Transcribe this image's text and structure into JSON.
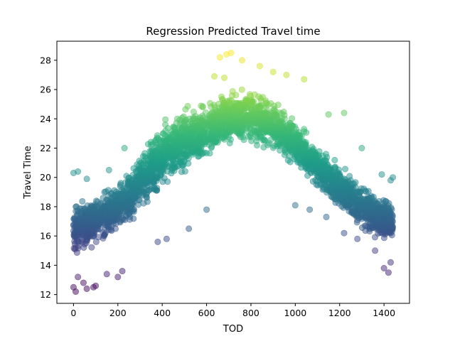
{
  "chart_data": {
    "type": "scatter",
    "title": "Regression Predicted Travel time",
    "xlabel": "TOD",
    "ylabel": "Travel Time",
    "xlim": [
      -75,
      1515
    ],
    "ylim": [
      11.4,
      29.3
    ],
    "xticks": [
      0,
      200,
      400,
      600,
      800,
      1000,
      1200,
      1400
    ],
    "yticks": [
      12,
      14,
      16,
      18,
      20,
      22,
      24,
      26,
      28
    ],
    "grid": false,
    "legend": "none",
    "colormap": "viridis",
    "color_range": [
      12,
      28.5
    ],
    "marker_alpha": 0.5,
    "series": [
      {
        "x": [
          0,
          10,
          20,
          40,
          60,
          80,
          100,
          120,
          140,
          160,
          180,
          200,
          220,
          240,
          260,
          280,
          300,
          320,
          340,
          360,
          380,
          400,
          420,
          440,
          460,
          480,
          500,
          520,
          540,
          560,
          580,
          600,
          620,
          640,
          660,
          680,
          700,
          720,
          740,
          760,
          780,
          800,
          820,
          840,
          860,
          880,
          900,
          920,
          940,
          960,
          980,
          1000,
          1020,
          1040,
          1060,
          1080,
          1100,
          1120,
          1140,
          1160,
          1180,
          1200,
          1220,
          1240,
          1260,
          1280,
          1300,
          1320,
          1340,
          1360,
          1380,
          1400,
          1420,
          1440
        ],
        "y_mean": [
          16.2,
          16.3,
          16.4,
          16.6,
          16.8,
          17.0,
          17.2,
          17.4,
          17.6,
          17.8,
          18.0,
          18.2,
          18.5,
          18.8,
          19.2,
          19.6,
          20.2,
          20.6,
          20.9,
          21.2,
          21.5,
          21.8,
          22.0,
          22.2,
          22.4,
          22.6,
          22.8,
          23.0,
          23.1,
          23.2,
          23.4,
          23.5,
          23.6,
          23.7,
          23.8,
          23.9,
          24.0,
          24.1,
          24.2,
          24.3,
          24.4,
          24.4,
          24.3,
          24.2,
          24.0,
          23.8,
          23.5,
          23.2,
          22.9,
          22.6,
          22.3,
          22.0,
          21.7,
          21.4,
          21.1,
          20.8,
          20.4,
          20.0,
          19.6,
          19.3,
          19.0,
          18.8,
          18.6,
          18.4,
          18.2,
          18.0,
          17.8,
          17.6,
          17.4,
          17.2,
          17.0,
          16.9,
          16.8,
          16.7
        ],
        "y_min": [
          14.0,
          13.8,
          13.6,
          13.5,
          13.8,
          14.0,
          14.1,
          14.3,
          14.4,
          14.6,
          14.7,
          14.9,
          15.1,
          15.3,
          15.6,
          15.9,
          16.3,
          16.6,
          16.9,
          17.2,
          17.5,
          17.8,
          18.0,
          18.3,
          18.6,
          18.8,
          19.0,
          19.2,
          19.4,
          19.6,
          19.8,
          20.0,
          20.2,
          20.4,
          20.6,
          20.8,
          21.0,
          21.2,
          21.3,
          21.2,
          21.0,
          20.8,
          20.7,
          20.8,
          20.9,
          21.0,
          20.9,
          20.8,
          20.6,
          20.4,
          20.2,
          20.0,
          19.8,
          19.5,
          19.2,
          18.9,
          18.6,
          18.3,
          18.0,
          17.7,
          17.4,
          17.2,
          17.0,
          16.6,
          16.2,
          15.8,
          15.5,
          15.3,
          15.1,
          15.0,
          14.8,
          14.6,
          14.5,
          14.8
        ],
        "y_max": [
          19.5,
          19.6,
          19.6,
          19.5,
          19.6,
          19.8,
          19.9,
          20.1,
          20.3,
          20.4,
          20.5,
          20.7,
          20.9,
          21.1,
          21.4,
          21.7,
          22.7,
          23.2,
          23.6,
          24.0,
          24.3,
          24.6,
          24.9,
          25.1,
          25.3,
          25.5,
          25.7,
          25.9,
          26.0,
          26.1,
          26.2,
          26.3,
          26.4,
          26.5,
          26.6,
          26.7,
          26.7,
          26.8,
          26.9,
          27.0,
          27.0,
          27.1,
          27.0,
          26.9,
          26.8,
          26.6,
          26.3,
          26.0,
          25.7,
          25.4,
          25.0,
          24.7,
          24.4,
          24.1,
          23.8,
          23.5,
          23.2,
          23.0,
          22.8,
          22.5,
          22.2,
          21.9,
          21.6,
          21.4,
          21.2,
          21.0,
          20.8,
          20.6,
          20.4,
          20.2,
          20.0,
          19.8,
          19.6,
          19.4
        ]
      }
    ],
    "outliers": [
      {
        "x": 0,
        "y": 12.5
      },
      {
        "x": 10,
        "y": 12.2
      },
      {
        "x": 20,
        "y": 13.2
      },
      {
        "x": 45,
        "y": 12.8
      },
      {
        "x": 60,
        "y": 12.4
      },
      {
        "x": 90,
        "y": 12.5
      },
      {
        "x": 100,
        "y": 12.6
      },
      {
        "x": 150,
        "y": 13.4
      },
      {
        "x": 200,
        "y": 13.2
      },
      {
        "x": 220,
        "y": 13.6
      },
      {
        "x": 0,
        "y": 20.3
      },
      {
        "x": 20,
        "y": 20.4
      },
      {
        "x": 60,
        "y": 19.9
      },
      {
        "x": 160,
        "y": 20.5
      },
      {
        "x": 230,
        "y": 22.0
      },
      {
        "x": 380,
        "y": 15.6
      },
      {
        "x": 420,
        "y": 15.8
      },
      {
        "x": 520,
        "y": 16.5
      },
      {
        "x": 600,
        "y": 17.8
      },
      {
        "x": 660,
        "y": 28.2
      },
      {
        "x": 690,
        "y": 28.4
      },
      {
        "x": 710,
        "y": 28.5
      },
      {
        "x": 760,
        "y": 28.0
      },
      {
        "x": 635,
        "y": 26.9
      },
      {
        "x": 680,
        "y": 26.8
      },
      {
        "x": 840,
        "y": 27.6
      },
      {
        "x": 900,
        "y": 27.2
      },
      {
        "x": 960,
        "y": 27.0
      },
      {
        "x": 1040,
        "y": 26.7
      },
      {
        "x": 1000,
        "y": 18.1
      },
      {
        "x": 1065,
        "y": 17.8
      },
      {
        "x": 1140,
        "y": 17.3
      },
      {
        "x": 1220,
        "y": 16.2
      },
      {
        "x": 1280,
        "y": 15.8
      },
      {
        "x": 1360,
        "y": 15.0
      },
      {
        "x": 1400,
        "y": 13.8
      },
      {
        "x": 1420,
        "y": 13.5
      },
      {
        "x": 1430,
        "y": 14.2
      },
      {
        "x": 1440,
        "y": 20.0
      },
      {
        "x": 1430,
        "y": 19.8
      },
      {
        "x": 1390,
        "y": 20.2
      },
      {
        "x": 1300,
        "y": 22.0
      },
      {
        "x": 1220,
        "y": 24.4
      },
      {
        "x": 1150,
        "y": 24.3
      }
    ]
  }
}
